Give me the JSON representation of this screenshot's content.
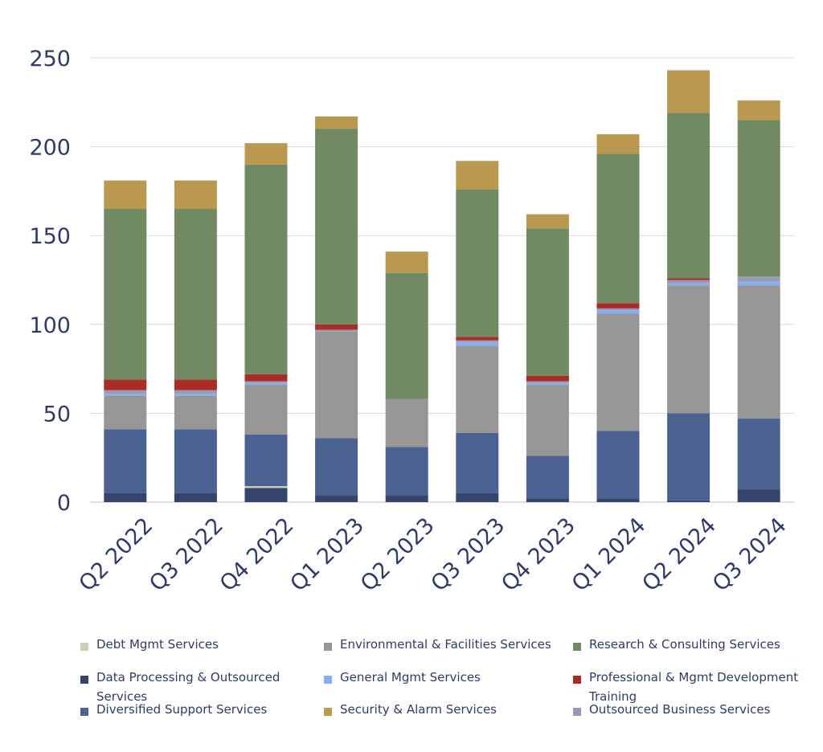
{
  "chart_data": {
    "type": "bar",
    "stacked": true,
    "title": "",
    "xlabel": "",
    "ylabel": "",
    "ylim": [
      0,
      250
    ],
    "yticks": [
      "0",
      "50",
      "100",
      "150",
      "200",
      "250"
    ],
    "grid": true,
    "legend_position": "bottom",
    "categories": [
      "Q2 2022",
      "Q3 2022",
      "Q4 2022",
      "Q1 2023",
      "Q2 2023",
      "Q3 2023",
      "Q4 2023",
      "Q1 2024",
      "Q2 2024",
      "Q3 2024"
    ],
    "series": [
      {
        "name": "Data Processing & Outsourced Services",
        "color": "#34446b",
        "values": [
          5,
          5,
          8,
          4,
          4,
          5,
          2,
          2,
          1,
          7
        ]
      },
      {
        "name": "Debt Mgmt Services",
        "color": "#cfcdb4",
        "values": [
          0,
          0,
          1,
          0,
          0,
          0,
          0,
          0,
          0,
          0
        ]
      },
      {
        "name": "Diversified Support Services",
        "color": "#4b6290",
        "values": [
          36,
          36,
          29,
          32,
          27,
          34,
          24,
          38,
          49,
          40
        ]
      },
      {
        "name": "Environmental & Facilities Services",
        "color": "#969696",
        "values": [
          19,
          19,
          28,
          60,
          27,
          49,
          40,
          66,
          72,
          75
        ]
      },
      {
        "name": "General Mgmt Services",
        "color": "#86aef2",
        "values": [
          1,
          1,
          1,
          0,
          0,
          2,
          1,
          2,
          1,
          2
        ]
      },
      {
        "name": "Outsourced Business Services",
        "color": "#979cb4",
        "values": [
          2,
          2,
          1,
          1,
          0,
          1,
          1,
          1,
          2,
          3
        ]
      },
      {
        "name": "Professional & Mgmt Development Training",
        "color": "#a92c26",
        "values": [
          6,
          6,
          4,
          3,
          0,
          2,
          3,
          3,
          1,
          0
        ]
      },
      {
        "name": "Research & Consulting Services",
        "color": "#728a63",
        "values": [
          96,
          96,
          118,
          110,
          71,
          83,
          83,
          84,
          93,
          88
        ]
      },
      {
        "name": "Security & Alarm Services",
        "color": "#b8994f",
        "values": [
          16,
          16,
          12,
          7,
          12,
          16,
          8,
          11,
          24,
          11
        ]
      }
    ],
    "legend_order": [
      "Debt Mgmt Services",
      "Environmental & Facilities Services",
      "Research & Consulting Services",
      "Data Processing & Outsourced Services",
      "General Mgmt Services",
      "Professional & Mgmt Development Training",
      "Diversified Support Services",
      "Security & Alarm Services",
      "Outsourced Business Services"
    ]
  }
}
